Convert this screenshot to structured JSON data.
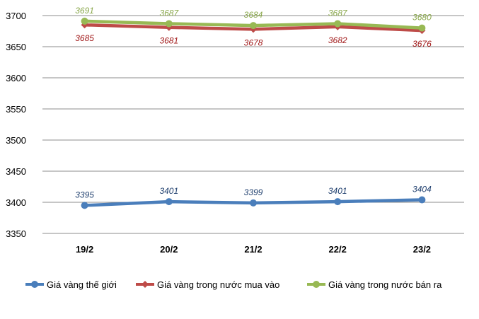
{
  "chart_data": {
    "type": "line",
    "categories": [
      "19/2",
      "20/2",
      "21/2",
      "22/2",
      "23/2"
    ],
    "ylim": [
      3350,
      3700
    ],
    "yticks": [
      3350,
      3400,
      3450,
      3500,
      3550,
      3600,
      3650,
      3700
    ],
    "grid": true,
    "legend_position": "bottom",
    "series": [
      {
        "name": "Giá vàng thế giới",
        "values": [
          3395,
          3401,
          3399,
          3401,
          3404
        ],
        "labels": [
          "3395",
          "3401",
          "3399",
          "3401",
          "3404"
        ],
        "color": "#4a7ebb",
        "label_color": "#1f3f6e",
        "marker": "circle",
        "label_pos": "above"
      },
      {
        "name": "Giá vàng trong nước mua vào",
        "values": [
          3685,
          3681,
          3678,
          3682,
          3676
        ],
        "labels": [
          "3685",
          "3681",
          "3678",
          "3682",
          "3676"
        ],
        "color": "#be4b48",
        "label_color": "#a01818",
        "marker": "diamond",
        "label_pos": "below"
      },
      {
        "name": "Giá vàng trong nước bán ra",
        "values": [
          3691,
          3687,
          3684,
          3687,
          3680
        ],
        "labels": [
          "3691",
          "3687",
          "3684",
          "3687",
          "3680"
        ],
        "color": "#98b954",
        "label_color": "#8aa84c",
        "marker": "circle",
        "label_pos": "above"
      }
    ]
  }
}
